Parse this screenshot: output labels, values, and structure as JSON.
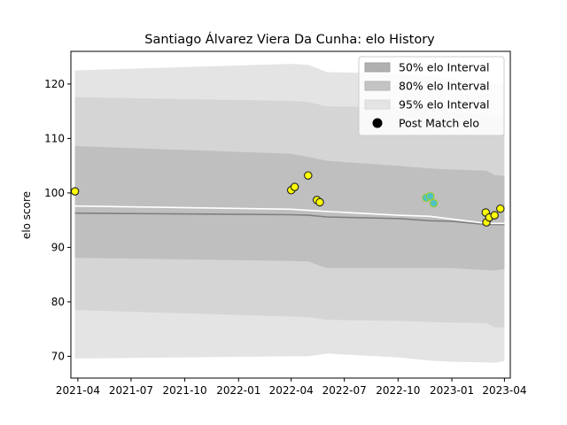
{
  "chart_data": {
    "type": "scatter",
    "title": "Santiago Álvarez Viera Da Cunha: elo History",
    "xlabel": "",
    "ylabel": "elo score",
    "ylim": [
      66,
      126
    ],
    "xlim": [
      "2021-03-20",
      "2023-04-11"
    ],
    "x_ticks": [
      "2021-04",
      "2021-07",
      "2021-10",
      "2022-01",
      "2022-04",
      "2022-07",
      "2022-10",
      "2023-01",
      "2023-04"
    ],
    "y_ticks": [
      70,
      80,
      90,
      100,
      110,
      120
    ],
    "grid": false,
    "legend_position": "upper right",
    "legend": [
      {
        "label": "50% elo Interval",
        "color": "#b0b0b0"
      },
      {
        "label": "80% elo Interval",
        "color": "#c4c4c4"
      },
      {
        "label": "95% elo Interval",
        "color": "#e4e4e4"
      },
      {
        "label": "Post Match elo",
        "color": "#000000"
      }
    ],
    "intervals_x": [
      "2021-03-27",
      "2022-04-01",
      "2022-05-01",
      "2022-06-01",
      "2022-10-01",
      "2022-11-25",
      "2023-01-01",
      "2023-03-01",
      "2023-03-15",
      "2023-04-01"
    ],
    "interval_95": {
      "upper": [
        122.5,
        123.7,
        123.5,
        122.2,
        121.9,
        121.5,
        120.9,
        120.4,
        120.0,
        119.8
      ],
      "lower": [
        69.6,
        70.0,
        70.0,
        70.5,
        69.8,
        69.2,
        69.0,
        68.9,
        68.8,
        69.1
      ]
    },
    "interval_80": {
      "upper": [
        117.6,
        116.9,
        116.7,
        115.9,
        115.8,
        115.6,
        114.6,
        114.3,
        114.0,
        114.0
      ],
      "lower": [
        78.5,
        77.3,
        77.2,
        76.7,
        76.5,
        76.3,
        76.2,
        76.1,
        75.3,
        75.3
      ]
    },
    "interval_50": {
      "upper": [
        108.6,
        107.2,
        106.6,
        105.9,
        105.0,
        104.5,
        104.3,
        104.1,
        103.3,
        103.1
      ],
      "lower": [
        88.1,
        87.5,
        87.4,
        86.2,
        86.2,
        86.2,
        86.2,
        85.8,
        85.8,
        86.0
      ]
    },
    "median_line": {
      "x": [
        "2021-03-27",
        "2022-04-01",
        "2022-05-01",
        "2022-06-01",
        "2022-10-01",
        "2022-11-25",
        "2023-01-01",
        "2023-03-01",
        "2023-04-01"
      ],
      "y": [
        96.3,
        96.0,
        95.9,
        95.6,
        95.3,
        94.9,
        94.8,
        94.2,
        94.2
      ],
      "color": "#808080"
    },
    "mean_line": {
      "x": [
        "2021-03-27",
        "2022-04-01",
        "2022-05-01",
        "2022-06-01",
        "2022-10-01",
        "2022-11-25",
        "2023-01-01",
        "2023-03-01",
        "2023-04-01"
      ],
      "y": [
        97.6,
        97.0,
        96.8,
        96.6,
        95.9,
        95.7,
        95.2,
        94.4,
        94.4
      ],
      "color": "#ffffff"
    },
    "series": [
      {
        "label": "Post Match elo",
        "points": [
          {
            "x": "2021-03-27",
            "y": 100.3,
            "fill": "#ffff00",
            "edge": "#222222"
          },
          {
            "x": "2022-04-01",
            "y": 100.5,
            "fill": "#ffff00",
            "edge": "#222222"
          },
          {
            "x": "2022-04-07",
            "y": 101.1,
            "fill": "#ffff00",
            "edge": "#222222"
          },
          {
            "x": "2022-04-30",
            "y": 103.2,
            "fill": "#ffff00",
            "edge": "#222222"
          },
          {
            "x": "2022-05-15",
            "y": 98.7,
            "fill": "#ffff00",
            "edge": "#222222"
          },
          {
            "x": "2022-05-20",
            "y": 98.3,
            "fill": "#ffff00",
            "edge": "#222222"
          },
          {
            "x": "2022-11-18",
            "y": 99.1,
            "fill": "#4fc3c3",
            "edge": "#9acd32"
          },
          {
            "x": "2022-11-25",
            "y": 99.4,
            "fill": "#4fc3c3",
            "edge": "#9acd32"
          },
          {
            "x": "2022-12-01",
            "y": 98.1,
            "fill": "#4fc3c3",
            "edge": "#9acd32"
          },
          {
            "x": "2023-02-28",
            "y": 96.4,
            "fill": "#ffff00",
            "edge": "#222222"
          },
          {
            "x": "2023-03-01",
            "y": 94.6,
            "fill": "#ffff00",
            "edge": "#222222"
          },
          {
            "x": "2023-03-06",
            "y": 95.5,
            "fill": "#ffff00",
            "edge": "#222222"
          },
          {
            "x": "2023-03-15",
            "y": 95.9,
            "fill": "#ffff00",
            "edge": "#222222"
          },
          {
            "x": "2023-03-25",
            "y": 97.1,
            "fill": "#ffff00",
            "edge": "#222222"
          }
        ]
      }
    ]
  }
}
